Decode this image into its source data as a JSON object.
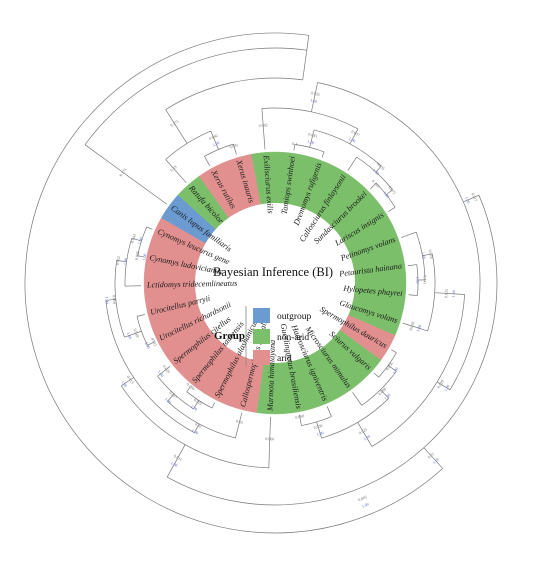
{
  "title": "Bayesian Inference (BI)",
  "legend": {
    "title": "Group",
    "items": [
      {
        "key": "outgroup",
        "label": "outgroup",
        "color": "#6b9bd1"
      },
      {
        "key": "non-arid",
        "label": "non-arid",
        "color": "#7bbf6a"
      },
      {
        "key": "arid",
        "label": "arid",
        "color": "#e1908f"
      }
    ]
  },
  "taxa": [
    {
      "name": "Exilisciurus exilis",
      "group": "non-arid"
    },
    {
      "name": "Tamiops swinhoei",
      "group": "non-arid"
    },
    {
      "name": "Dremomys rufigenis",
      "group": "non-arid"
    },
    {
      "name": "Callosciurus finlaysonii",
      "group": "non-arid"
    },
    {
      "name": "Sundasciurus brookei",
      "group": "non-arid"
    },
    {
      "name": "Lariscus insignis",
      "group": "non-arid"
    },
    {
      "name": "Petinomys volans",
      "group": "non-arid"
    },
    {
      "name": "Petaurista hainana",
      "group": "non-arid"
    },
    {
      "name": "Hylopetes phayrei",
      "group": "non-arid"
    },
    {
      "name": "Glaucomys volans",
      "group": "non-arid"
    },
    {
      "name": "Spermophilus dauricus",
      "group": "arid"
    },
    {
      "name": "Sciurus vulgaris",
      "group": "non-arid"
    },
    {
      "name": "Microsciurus mimulus",
      "group": "non-arid"
    },
    {
      "name": "Hadrosciurus igniventris",
      "group": "non-arid"
    },
    {
      "name": "Guerlinguetus brasiliensis",
      "group": "non-arid"
    },
    {
      "name": "Marmota himalayana",
      "group": "non-arid"
    },
    {
      "name": "Callospermophilus lateralis",
      "group": "arid"
    },
    {
      "name": "Spermophilus alashanicus",
      "group": "arid"
    },
    {
      "name": "Spermophilus taurensis",
      "group": "arid"
    },
    {
      "name": "Spermophilus citellus",
      "group": "arid"
    },
    {
      "name": "Urocitellus richardsonii",
      "group": "arid"
    },
    {
      "name": "Urocitellus parryii",
      "group": "arid"
    },
    {
      "name": "Lctidomys tridecemlineatus",
      "group": "arid"
    },
    {
      "name": "Cynomys ludovicianus",
      "group": "arid"
    },
    {
      "name": "Cynomys leucurus gene",
      "group": "arid"
    },
    {
      "name": "Canis lupus familiaris",
      "group": "outgroup"
    },
    {
      "name": "Ratufa bicolor",
      "group": "non-arid"
    },
    {
      "name": "Xerus rutilus",
      "group": "arid"
    },
    {
      "name": "Xerus inauris",
      "group": "arid"
    }
  ],
  "tree": {
    "canis_branch": {
      "pp": "0.175",
      "ml": ""
    },
    "ingroup_branch": {
      "pp": "0.175",
      "ml": ""
    },
    "ratufa_branch": {
      "pp": "0.19",
      "ml": ""
    },
    "xerus_clade": {
      "pp": "0.060",
      "ml": "1.00"
    },
    "xerus_pair": {
      "pp": "0.091",
      "ml": ""
    },
    "north_clade": {
      "pp": "0.033",
      "ml": "1.00"
    },
    "sciurini_clade": {
      "pp": "0.029",
      "ml": "1.00"
    },
    "flying_squirrels": {
      "pp": "0.025",
      "ml": "1.00"
    },
    "petaurista_pair": {
      "pp": "0.018",
      "ml": "1.00"
    },
    "petaurista_hylopetes": {
      "pp": "0.141",
      "ml": "1.00"
    },
    "glaucomys_pair": {
      "pp": "0.026",
      "ml": "1.00"
    },
    "callosciurinae": {
      "pp": "0.037",
      "ml": "1.00"
    },
    "tamiops_dremomys": {
      "pp": "0.045",
      "ml": "1.00"
    },
    "tamiops_branch": {
      "pp": "0.1",
      "ml": ""
    },
    "callosciurus_sundasciurus": {
      "pp": "0.035",
      "ml": "1.00"
    },
    "lariscus_sundasciurus": {
      "pp": "0.072",
      "ml": "1.00"
    },
    "sundasciurus_branch": {
      "pp": "0.312",
      "ml": ""
    },
    "exilisciurus_branch": {
      "pp": "0.092",
      "ml": ""
    },
    "sciurini": {
      "pp": "0.025",
      "ml": "1.00"
    },
    "sciurus_microsciurus": {
      "pp": "0.098",
      "ml": "1.00"
    },
    "dauricus_sciurus": {
      "pp": "0.056",
      "ml": "1.00"
    },
    "hadrosciurus_guerlinguetus": {
      "pp": "0.030",
      "ml": "1.00"
    },
    "guerlinguetus_branch": {
      "pp": "0.060",
      "ml": ""
    },
    "marmotini": {
      "pp": "0.013",
      "ml": "1.00"
    },
    "marmota_branch": {
      "pp": "0.060",
      "ml": ""
    },
    "callospermophilus_branch": {
      "pp": "0.05",
      "ml": ""
    },
    "spermophilus_clade": {
      "pp": "0.017",
      "ml": "1.00"
    },
    "alashanicus_taurensis": {
      "pp": "0.022",
      "ml": "1.00"
    },
    "taurensis_branch": {
      "pp": "0.066",
      "ml": ""
    },
    "citellus_branch": {
      "pp": "0.020",
      "ml": "1.00"
    },
    "urocitellus_clade": {
      "pp": "0.014",
      "ml": "1.00"
    },
    "urocitellus_pair": {
      "pp": "0.018",
      "ml": "1.00"
    },
    "urocitellus_inner": {
      "pp": "0.011",
      "ml": "1.00"
    },
    "ictidomys_cynomys": {
      "pp": "0.052",
      "ml": "1.00"
    },
    "cynomys_clade": {
      "pp": "0.02",
      "ml": "1.00"
    },
    "cynomys_pair": {
      "pp": "0.043",
      "ml": "1.00"
    },
    "cynomys_branch": {
      "pp": "0.026",
      "ml": "1.00"
    },
    "marmotini_root": {
      "pp": "0.01",
      "ml": "1.00"
    },
    "outer_clade": {
      "pp": "0.011",
      "ml": "1.00"
    },
    "root_bottom": {
      "pp": "0.005",
      "ml": "1.00"
    },
    "root_right": {
      "pp": "0.017",
      "ml": "1.00"
    }
  }
}
